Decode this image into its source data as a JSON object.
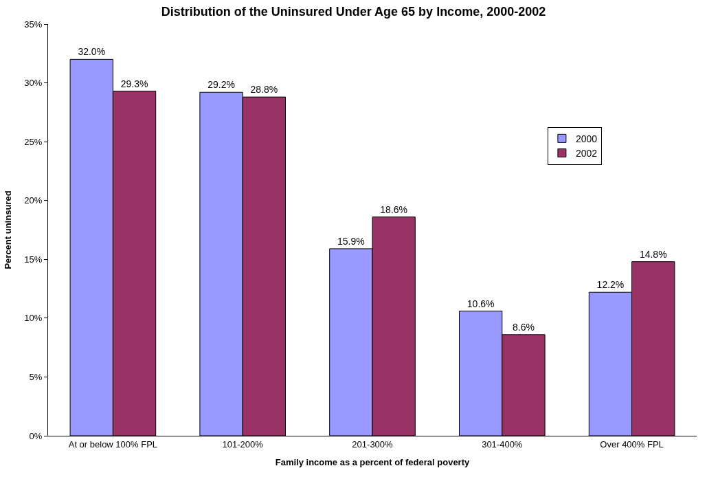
{
  "chart_data": {
    "type": "bar",
    "title": "Distribution of the Uninsured Under Age 65 by Income, 2000-2002",
    "xlabel": "Family income as a percent of federal poverty",
    "ylabel": "Percent uninsured",
    "categories": [
      "At or below 100% FPL",
      "101-200%",
      "201-300%",
      "301-400%",
      "Over 400% FPL"
    ],
    "series": [
      {
        "name": "2000",
        "color": "#9999ff",
        "values": [
          32.0,
          29.2,
          15.9,
          10.6,
          12.2
        ],
        "value_labels": [
          "32.0%",
          "29.2%",
          "15.9%",
          "10.6%",
          "12.2%"
        ]
      },
      {
        "name": "2002",
        "color": "#993366",
        "values": [
          29.3,
          28.8,
          18.6,
          8.6,
          14.8
        ],
        "value_labels": [
          "29.3%",
          "28.8%",
          "18.6%",
          "8.6%",
          "14.8%"
        ]
      }
    ],
    "ylim": [
      0,
      35
    ],
    "yticks": [
      {
        "value": 0,
        "label": "0%"
      },
      {
        "value": 5,
        "label": "5%"
      },
      {
        "value": 10,
        "label": "10%"
      },
      {
        "value": 15,
        "label": "15%"
      },
      {
        "value": 20,
        "label": "20%"
      },
      {
        "value": 25,
        "label": "25%"
      },
      {
        "value": 30,
        "label": "30%"
      },
      {
        "value": 35,
        "label": "35%"
      }
    ],
    "grid": false,
    "legend": "right"
  }
}
